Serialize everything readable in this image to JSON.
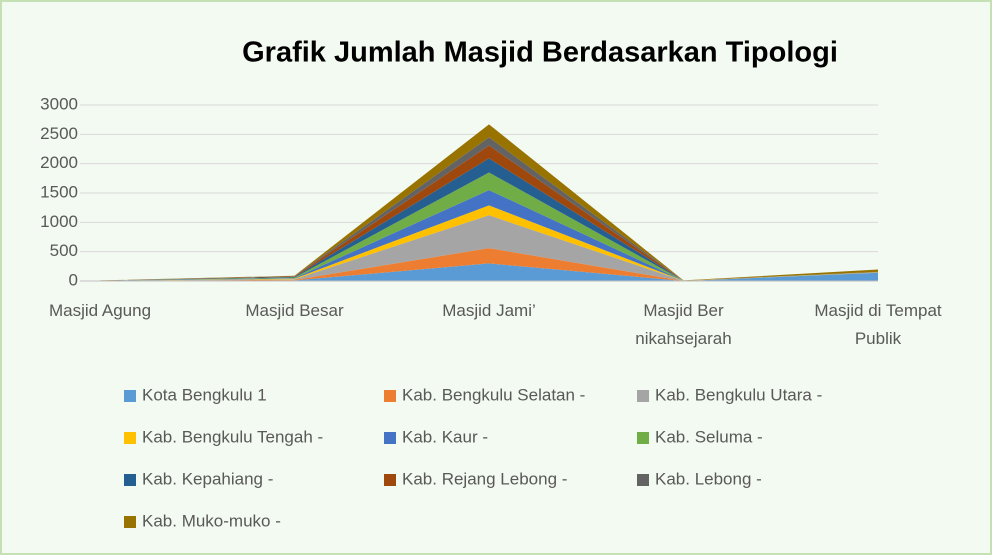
{
  "chart_data": {
    "type": "area",
    "stacked": true,
    "title": "Grafik Jumlah Masjid Berdasarkan Tipologi",
    "categories": [
      "Masjid Agung",
      "Masjid Besar",
      "Masjid Jami’",
      "Masjid Ber\nnikahsejarah",
      "Masjid di Tempat\nPublik"
    ],
    "ylim": [
      0,
      3000
    ],
    "yticks": [
      0,
      500,
      1000,
      1500,
      2000,
      2500,
      3000
    ],
    "grid": true,
    "legend": "bottom",
    "series": [
      {
        "name": "Kota Bengkulu 1",
        "color": "#5b9bd5",
        "values": [
          1,
          10,
          300,
          1,
          140
        ]
      },
      {
        "name": "Kab. Bengkulu Selatan -",
        "color": "#ed7d31",
        "values": [
          1,
          10,
          260,
          1,
          2
        ]
      },
      {
        "name": "Kab. Bengkulu Utara -",
        "color": "#a5a5a5",
        "values": [
          1,
          10,
          560,
          1,
          2
        ]
      },
      {
        "name": "Kab. Bengkulu Tengah -",
        "color": "#ffc000",
        "values": [
          1,
          10,
          170,
          1,
          2
        ]
      },
      {
        "name": "Kab. Kaur -",
        "color": "#4472c4",
        "values": [
          1,
          10,
          260,
          1,
          2
        ]
      },
      {
        "name": "Kab. Seluma -",
        "color": "#70ad47",
        "values": [
          1,
          10,
          300,
          1,
          2
        ]
      },
      {
        "name": "Kab. Kepahiang -",
        "color": "#255e91",
        "values": [
          1,
          10,
          240,
          1,
          2
        ]
      },
      {
        "name": "Kab. Rejang Lebong -",
        "color": "#9e480e",
        "values": [
          1,
          10,
          220,
          1,
          2
        ]
      },
      {
        "name": "Kab. Lebong -",
        "color": "#636363",
        "values": [
          1,
          5,
          140,
          1,
          2
        ]
      },
      {
        "name": "Kab. Muko-muko -",
        "color": "#997300",
        "values": [
          1,
          5,
          220,
          1,
          40
        ]
      }
    ]
  }
}
